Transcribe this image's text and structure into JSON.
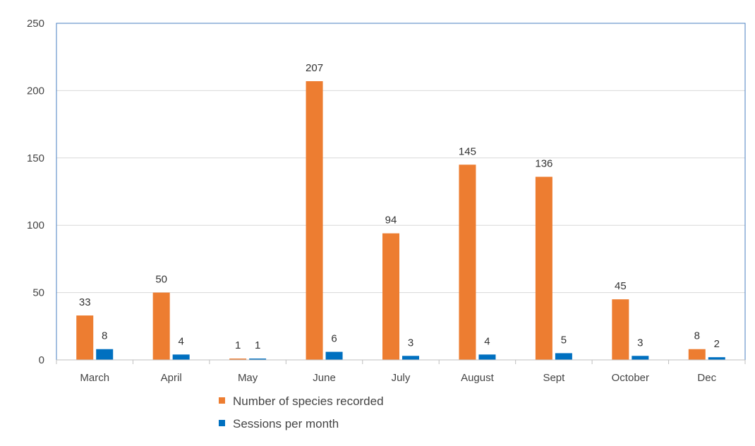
{
  "chart_data": {
    "type": "bar",
    "categories": [
      "March",
      "April",
      "May",
      "June",
      "July",
      "August",
      "Sept",
      "October",
      "Dec"
    ],
    "series": [
      {
        "name": "Number of species recorded",
        "values": [
          33,
          50,
          1,
          207,
          94,
          145,
          136,
          45,
          8
        ],
        "color": "#ED7D31"
      },
      {
        "name": "Sessions per month",
        "values": [
          8,
          4,
          1,
          6,
          3,
          4,
          5,
          3,
          2
        ],
        "color": "#0070C0"
      }
    ],
    "yticks": [
      0,
      50,
      100,
      150,
      200,
      250
    ],
    "ylim": [
      0,
      250
    ],
    "grid": true,
    "legend": "bottom",
    "data_labels": true
  }
}
